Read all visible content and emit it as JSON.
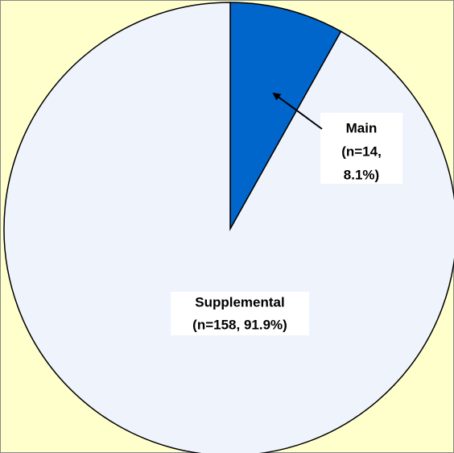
{
  "chart_data": {
    "type": "pie",
    "categories": [
      "Main",
      "Supplemental"
    ],
    "values": [
      14,
      158
    ],
    "value_labels": [
      [
        "(n=14,",
        "8.1%)"
      ],
      [
        "(n=158, 91.9%)"
      ]
    ],
    "colors": [
      "#0066cc",
      "#eef3fc"
    ],
    "background": "#ffffcc"
  }
}
